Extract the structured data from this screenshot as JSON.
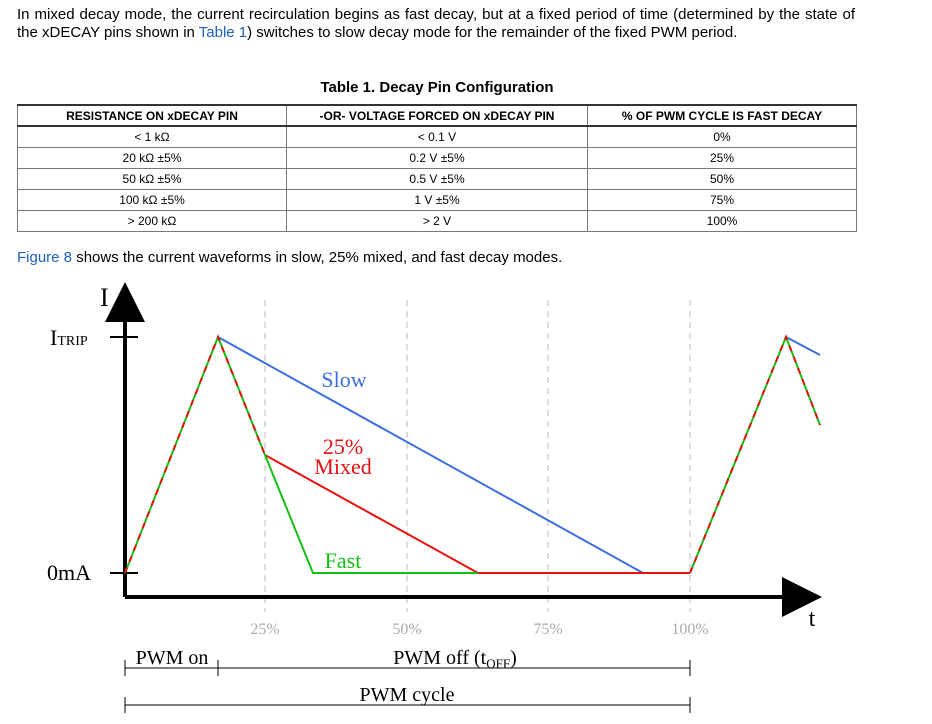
{
  "intro": {
    "before": "In mixed decay mode, the current recirculation begins as fast decay, but at a fixed period of time (determined by the state of the xDECAY pins shown in ",
    "link": "Table 1",
    "after": ") switches to slow decay mode for the remainder of the fixed PWM period."
  },
  "table": {
    "title": "Table 1. Decay Pin Configuration",
    "header": [
      "RESISTANCE ON xDECAY PIN",
      "-OR- VOLTAGE FORCED ON xDECAY PIN",
      "% OF PWM CYCLE IS FAST DECAY"
    ],
    "rows": [
      [
        "< 1 kΩ",
        "< 0.1 V",
        "0%"
      ],
      [
        "20 kΩ ±5%",
        "0.2 V ±5%",
        "25%"
      ],
      [
        "50 kΩ ±5%",
        "0.5 V ±5%",
        "50%"
      ],
      [
        "100 kΩ ±5%",
        "1 V ±5%",
        "75%"
      ],
      [
        "> 200 kΩ",
        "> 2 V",
        "100%"
      ]
    ]
  },
  "figure_ref": {
    "link": "Figure 8",
    "after": " shows the current waveforms in slow, 25% mixed, and fast decay modes."
  },
  "diagram": {
    "y_axis": "I",
    "x_axis": "t",
    "itrip": {
      "main": "I",
      "sub": "TRIP"
    },
    "zero": "0mA",
    "slow": "Slow",
    "mixed": [
      "25%",
      "Mixed"
    ],
    "fast": "Fast",
    "ticks": [
      "25%",
      "50%",
      "75%",
      "100%"
    ],
    "pwm_on": "PWM on",
    "pwm_off": {
      "main": "PWM off (t",
      "sub": "OFF",
      "end": ")"
    },
    "pwm_cycle": "PWM cycle"
  }
}
